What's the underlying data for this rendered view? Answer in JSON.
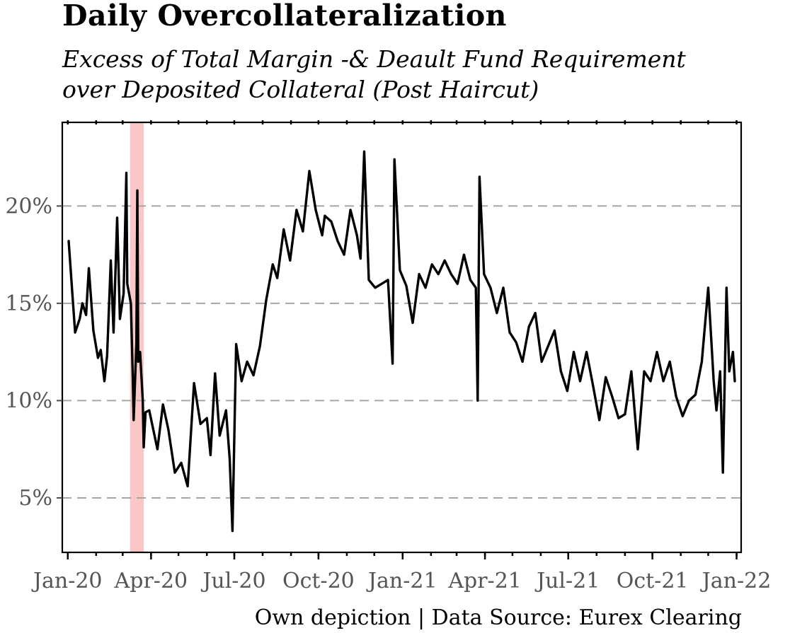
{
  "chart_data": {
    "type": "line",
    "title": "Daily Overcollateralization",
    "subtitle_lines": [
      "Excess of Total Margin -& Deault Fund Requirement",
      "over Deposited Collateral (Post Haircut)"
    ],
    "caption": "Own depiction | Data Source: Eurex Clearing",
    "xlabel": "",
    "ylabel": "",
    "x_ticks": [
      {
        "date": "2020-01-01",
        "label": "Jan-20"
      },
      {
        "date": "2020-04-01",
        "label": "Apr-20"
      },
      {
        "date": "2020-07-01",
        "label": "Jul-20"
      },
      {
        "date": "2020-10-01",
        "label": "Oct-20"
      },
      {
        "date": "2021-01-01",
        "label": "Jan-21"
      },
      {
        "date": "2021-04-01",
        "label": "Apr-21"
      },
      {
        "date": "2021-07-01",
        "label": "Jul-21"
      },
      {
        "date": "2021-10-01",
        "label": "Oct-21"
      },
      {
        "date": "2022-01-01",
        "label": "Jan-22"
      }
    ],
    "y_ticks": [
      {
        "value": 5,
        "label": "5%"
      },
      {
        "value": 10,
        "label": "10%"
      },
      {
        "value": 15,
        "label": "15%"
      },
      {
        "value": 20,
        "label": "20%"
      }
    ],
    "xlim": [
      "2019-12-26",
      "2022-01-06"
    ],
    "ylim": [
      2.2,
      24.3
    ],
    "grid": "horizontal dashed",
    "highlight_band": {
      "start": "2020-03-09",
      "end": "2020-03-24",
      "color": "#f8b4b4"
    },
    "line_color": "#000000",
    "series": [
      {
        "x": [
          "2020-01-02",
          "2020-01-06",
          "2020-01-09",
          "2020-01-14",
          "2020-01-17",
          "2020-01-21",
          "2020-01-24",
          "2020-01-29",
          "2020-02-03",
          "2020-02-06",
          "2020-02-10",
          "2020-02-13",
          "2020-02-17",
          "2020-02-20",
          "2020-02-24",
          "2020-02-27",
          "2020-03-02",
          "2020-03-05",
          "2020-03-06",
          "2020-03-10",
          "2020-03-12",
          "2020-03-13",
          "2020-03-16",
          "2020-03-17",
          "2020-03-18",
          "2020-03-19",
          "2020-03-20",
          "2020-03-23",
          "2020-03-24",
          "2020-03-26",
          "2020-03-30",
          "2020-04-03",
          "2020-04-08",
          "2020-04-14",
          "2020-04-20",
          "2020-04-27",
          "2020-05-04",
          "2020-05-11",
          "2020-05-18",
          "2020-05-25",
          "2020-06-01",
          "2020-06-05",
          "2020-06-10",
          "2020-06-15",
          "2020-06-22",
          "2020-06-26",
          "2020-06-29",
          "2020-07-03",
          "2020-07-09",
          "2020-07-15",
          "2020-07-22",
          "2020-07-29",
          "2020-08-05",
          "2020-08-12",
          "2020-08-17",
          "2020-08-24",
          "2020-08-31",
          "2020-09-07",
          "2020-09-14",
          "2020-09-21",
          "2020-09-28",
          "2020-10-05",
          "2020-10-08",
          "2020-10-15",
          "2020-10-22",
          "2020-10-29",
          "2020-11-05",
          "2020-11-12",
          "2020-11-16",
          "2020-11-20",
          "2020-11-25",
          "2020-12-02",
          "2020-12-09",
          "2020-12-16",
          "2020-12-21",
          "2020-12-23",
          "2020-12-29",
          "2021-01-05",
          "2021-01-12",
          "2021-01-19",
          "2021-01-26",
          "2021-02-02",
          "2021-02-09",
          "2021-02-16",
          "2021-02-23",
          "2021-03-02",
          "2021-03-09",
          "2021-03-16",
          "2021-03-22",
          "2021-03-24",
          "2021-03-26",
          "2021-03-31",
          "2021-04-07",
          "2021-04-14",
          "2021-04-21",
          "2021-04-28",
          "2021-05-05",
          "2021-05-12",
          "2021-05-19",
          "2021-05-26",
          "2021-06-02",
          "2021-06-09",
          "2021-06-16",
          "2021-06-23",
          "2021-06-30",
          "2021-07-07",
          "2021-07-14",
          "2021-07-21",
          "2021-07-28",
          "2021-08-04",
          "2021-08-11",
          "2021-08-18",
          "2021-08-25",
          "2021-09-01",
          "2021-09-08",
          "2021-09-15",
          "2021-09-22",
          "2021-09-29",
          "2021-10-06",
          "2021-10-13",
          "2021-10-20",
          "2021-10-27",
          "2021-11-03",
          "2021-11-10",
          "2021-11-17",
          "2021-11-24",
          "2021-12-01",
          "2021-12-07",
          "2021-12-10",
          "2021-12-14",
          "2021-12-17",
          "2021-12-21",
          "2021-12-24",
          "2021-12-28",
          "2021-12-30"
        ],
        "y": [
          18.2,
          15.5,
          13.5,
          14.2,
          15.0,
          14.4,
          16.8,
          13.6,
          12.2,
          12.6,
          11.0,
          12.3,
          17.2,
          13.5,
          19.4,
          14.2,
          15.5,
          21.7,
          16.0,
          15.0,
          11.3,
          9.0,
          13.0,
          20.8,
          12.0,
          12.3,
          12.5,
          10.0,
          7.6,
          9.4,
          9.5,
          8.6,
          7.5,
          9.8,
          8.5,
          6.3,
          6.8,
          5.6,
          10.9,
          8.8,
          9.1,
          7.2,
          11.4,
          8.2,
          9.5,
          7.0,
          3.3,
          12.9,
          11.0,
          12.0,
          11.3,
          12.8,
          15.2,
          17.0,
          16.3,
          18.8,
          17.2,
          19.8,
          18.7,
          21.8,
          19.8,
          18.5,
          19.5,
          19.2,
          18.2,
          17.5,
          19.8,
          18.5,
          17.3,
          22.8,
          16.2,
          15.8,
          16.0,
          16.2,
          11.9,
          22.4,
          16.7,
          15.9,
          14.0,
          16.5,
          15.8,
          17.0,
          16.5,
          17.2,
          16.5,
          16.0,
          17.5,
          16.2,
          15.8,
          10.0,
          21.5,
          16.5,
          15.8,
          14.5,
          15.8,
          13.5,
          13.0,
          12.0,
          13.8,
          14.5,
          12.0,
          12.8,
          13.6,
          11.5,
          10.5,
          12.5,
          11.0,
          12.5,
          10.8,
          9.0,
          11.2,
          10.2,
          9.1,
          9.3,
          11.5,
          7.5,
          11.5,
          11.0,
          12.5,
          11.0,
          12.0,
          10.2,
          9.2,
          10.0,
          10.3,
          12.0,
          15.8,
          11.0,
          9.5,
          11.5,
          6.3,
          15.8,
          11.5,
          12.5,
          11.0
        ]
      }
    ]
  }
}
